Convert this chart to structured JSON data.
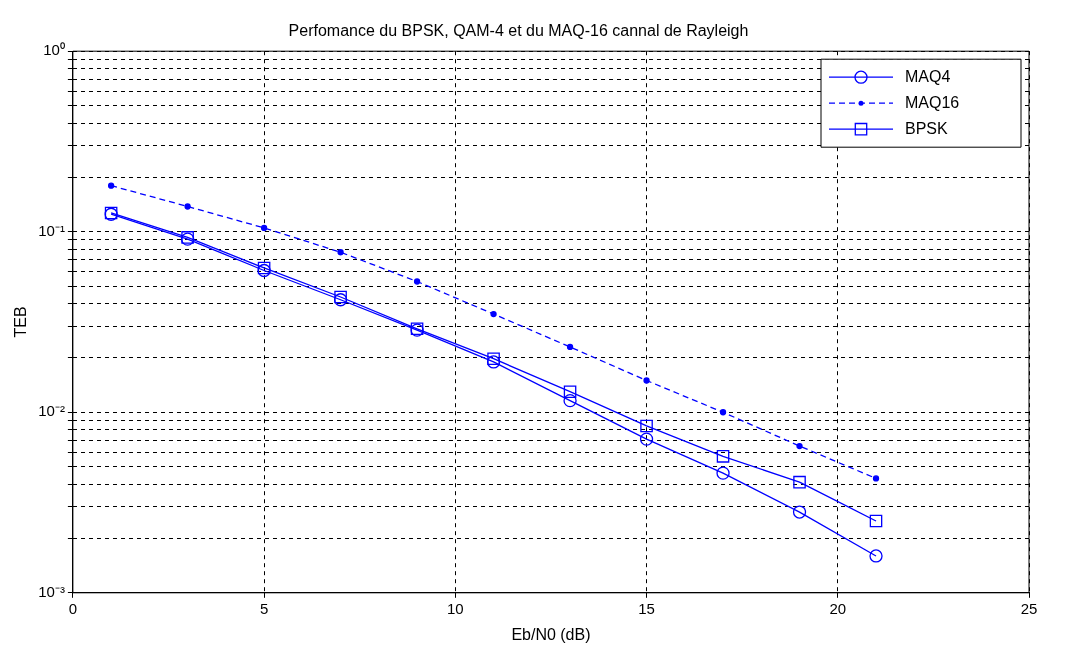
{
  "chart_data": {
    "type": "line",
    "title": "Perfomance du BPSK, QAM-4 et du MAQ-16 cannal de Rayleigh",
    "xlabel": "Eb/N0 (dB)",
    "ylabel": "TEB",
    "x": [
      1,
      3,
      5,
      7,
      9,
      11,
      13,
      15,
      17,
      19,
      21
    ],
    "series": [
      {
        "name": "MAQ4",
        "color": "#0000ff",
        "marker": "circle",
        "line_style": "solid",
        "values": [
          0.125,
          0.091,
          0.061,
          0.042,
          0.0285,
          0.019,
          0.0116,
          0.0071,
          0.0046,
          0.0028,
          0.0016
        ]
      },
      {
        "name": "MAQ16",
        "color": "#0000ff",
        "marker": "circle",
        "line_style": "dashed",
        "values": [
          0.18,
          0.138,
          0.105,
          0.077,
          0.053,
          0.035,
          0.023,
          0.015,
          0.01,
          0.0065,
          0.0043
        ]
      },
      {
        "name": "BPSK",
        "color": "#0000ff",
        "marker": "square",
        "line_style": "solid",
        "values": [
          0.127,
          0.093,
          0.063,
          0.0435,
          0.029,
          0.0198,
          0.013,
          0.0084,
          0.0057,
          0.0041,
          0.0025
        ]
      }
    ],
    "log": "y",
    "xlim": [
      0,
      25
    ],
    "xticks": [
      0,
      5,
      10,
      15,
      20,
      25
    ],
    "ylim": [
      0.001,
      1
    ],
    "yticks": [
      {
        "value": 0.001,
        "label": "10⁻³"
      },
      {
        "value": 0.002,
        "label": null
      },
      {
        "value": 0.003,
        "label": null
      },
      {
        "value": 0.004,
        "label": null
      },
      {
        "value": 0.005,
        "label": null
      },
      {
        "value": 0.006,
        "label": null
      },
      {
        "value": 0.007,
        "label": null
      },
      {
        "value": 0.008,
        "label": null
      },
      {
        "value": 0.009,
        "label": null
      },
      {
        "value": 0.01,
        "label": "10⁻²"
      },
      {
        "value": 0.02,
        "label": null
      },
      {
        "value": 0.03,
        "label": null
      },
      {
        "value": 0.04,
        "label": null
      },
      {
        "value": 0.05,
        "label": null
      },
      {
        "value": 0.06,
        "label": null
      },
      {
        "value": 0.07,
        "label": null
      },
      {
        "value": 0.08,
        "label": null
      },
      {
        "value": 0.09,
        "label": null
      },
      {
        "value": 0.1,
        "label": "10⁻¹"
      },
      {
        "value": 0.2,
        "label": null
      },
      {
        "value": 0.3,
        "label": null
      },
      {
        "value": 0.4,
        "label": null
      },
      {
        "value": 0.5,
        "label": null
      },
      {
        "value": 0.6,
        "label": null
      },
      {
        "value": 0.7,
        "label": null
      },
      {
        "value": 0.8,
        "label": null
      },
      {
        "value": 0.9,
        "label": null
      },
      {
        "value": 1,
        "label": "10⁰"
      }
    ],
    "grid": true,
    "legend": "top right"
  }
}
